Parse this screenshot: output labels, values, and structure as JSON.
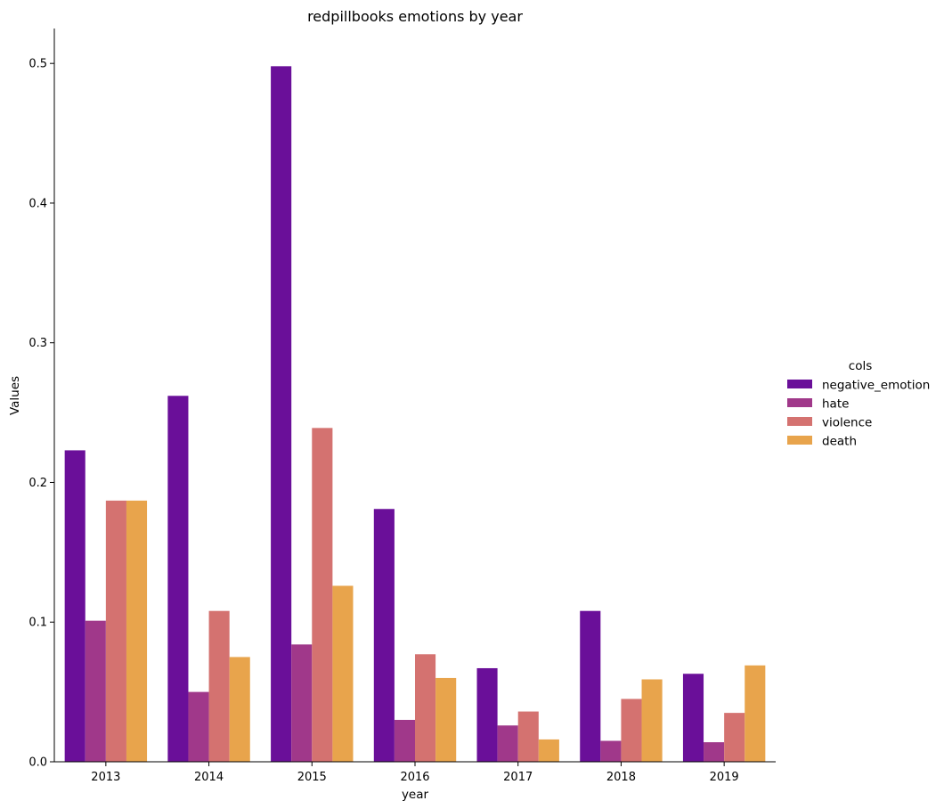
{
  "chart_data": {
    "type": "bar",
    "title": "redpillbooks emotions by year",
    "xlabel": "year",
    "ylabel": "Values",
    "categories": [
      "2013",
      "2014",
      "2015",
      "2016",
      "2017",
      "2018",
      "2019"
    ],
    "ylim": [
      0,
      0.525
    ],
    "yticks": [
      0.0,
      0.1,
      0.2,
      0.3,
      0.4,
      0.5
    ],
    "ytick_labels": [
      "0.0",
      "0.1",
      "0.2",
      "0.3",
      "0.4",
      "0.5"
    ],
    "grid": false,
    "legend": {
      "title": "cols",
      "placement": "right"
    },
    "series": [
      {
        "name": "negative_emotion",
        "color": "#6a0f99",
        "values": [
          0.223,
          0.262,
          0.498,
          0.181,
          0.067,
          0.108,
          0.063
        ]
      },
      {
        "name": "hate",
        "color": "#a0388a",
        "values": [
          0.101,
          0.05,
          0.084,
          0.03,
          0.026,
          0.015,
          0.014
        ]
      },
      {
        "name": "violence",
        "color": "#d47270",
        "values": [
          0.187,
          0.108,
          0.239,
          0.077,
          0.036,
          0.045,
          0.035
        ]
      },
      {
        "name": "death",
        "color": "#e8a44c",
        "values": [
          0.187,
          0.075,
          0.126,
          0.06,
          0.016,
          0.059,
          0.069
        ]
      }
    ]
  }
}
